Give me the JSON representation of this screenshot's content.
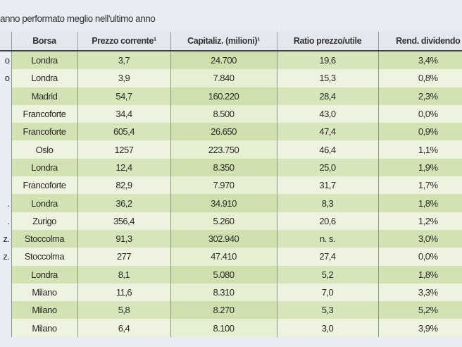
{
  "title": "anno performato meglio nell'ultimo anno",
  "columns": [
    "",
    "Borsa",
    "Prezzo corrente¹",
    "Capitaliz. (milioni)¹",
    "Ratio prezzo/utile",
    "Rend. dividendo"
  ],
  "rows": [
    [
      "o",
      "Londra",
      "3,7",
      "24.700",
      "19,6",
      "3,4%"
    ],
    [
      "o",
      "Londra",
      "3,9",
      "7.840",
      "15,3",
      "0,8%"
    ],
    [
      "",
      "Madrid",
      "54,7",
      "160.220",
      "28,4",
      "2,3%"
    ],
    [
      "",
      "Francoforte",
      "34,4",
      "8.500",
      "43,0",
      "0,0%"
    ],
    [
      "",
      "Francoforte",
      "605,4",
      "26.650",
      "47,4",
      "0,9%"
    ],
    [
      "",
      "Oslo",
      "1257",
      "223.750",
      "46,4",
      "1,1%"
    ],
    [
      "",
      "Londra",
      "12,4",
      "8.350",
      "25,0",
      "1,9%"
    ],
    [
      "",
      "Francoforte",
      "82,9",
      "7.970",
      "31,7",
      "1,7%"
    ],
    [
      ".",
      "Londra",
      "36,2",
      "34.910",
      "8,3",
      "1,8%"
    ],
    [
      ".",
      "Zurigo",
      "356,4",
      "5.260",
      "20,6",
      "1,2%"
    ],
    [
      "z.",
      "Stoccolma",
      "91,3",
      "302.940",
      "n. s.",
      "3,0%"
    ],
    [
      "z.",
      "Stoccolma",
      "277",
      "47.410",
      "27,4",
      "0,0%"
    ],
    [
      "",
      "Londra",
      "8,1",
      "5.080",
      "5,2",
      "1,8%"
    ],
    [
      "",
      "Milano",
      "11,6",
      "8.310",
      "7,0",
      "3,3%"
    ],
    [
      "",
      "Milano",
      "5,8",
      "8.270",
      "5,3",
      "5,2%"
    ],
    [
      "",
      "Milano",
      "6,4",
      "8.100",
      "3,0",
      "3,9%"
    ]
  ]
}
